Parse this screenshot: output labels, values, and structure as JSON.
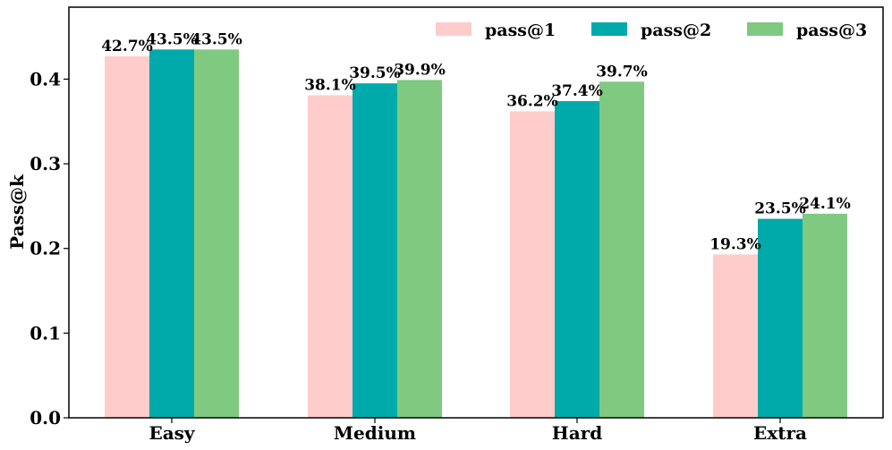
{
  "chart_data": {
    "type": "bar",
    "categories": [
      "Easy",
      "Medium",
      "Hard",
      "Extra"
    ],
    "series": [
      {
        "name": "pass@1",
        "color": "#ffcccc",
        "values": [
          0.427,
          0.381,
          0.362,
          0.193
        ],
        "labels": [
          "42.7%",
          "38.1%",
          "36.2%",
          "19.3%"
        ]
      },
      {
        "name": "pass@2",
        "color": "#00a9aa",
        "values": [
          0.435,
          0.395,
          0.374,
          0.235
        ],
        "labels": [
          "43.5%",
          "39.5%",
          "37.4%",
          "23.5%"
        ]
      },
      {
        "name": "pass@3",
        "color": "#80c980",
        "values": [
          0.435,
          0.399,
          0.397,
          0.241
        ],
        "labels": [
          "43.5%",
          "39.9%",
          "39.7%",
          "24.1%"
        ]
      }
    ],
    "ylabel": "Pass@k",
    "ylim": [
      0,
      0.485
    ],
    "yticks": [
      0.0,
      0.1,
      0.2,
      0.3,
      0.4
    ],
    "ytick_labels": [
      "0.0",
      "0.1",
      "0.2",
      "0.3",
      "0.4"
    ],
    "legend_position": "top-right",
    "grid": false
  }
}
